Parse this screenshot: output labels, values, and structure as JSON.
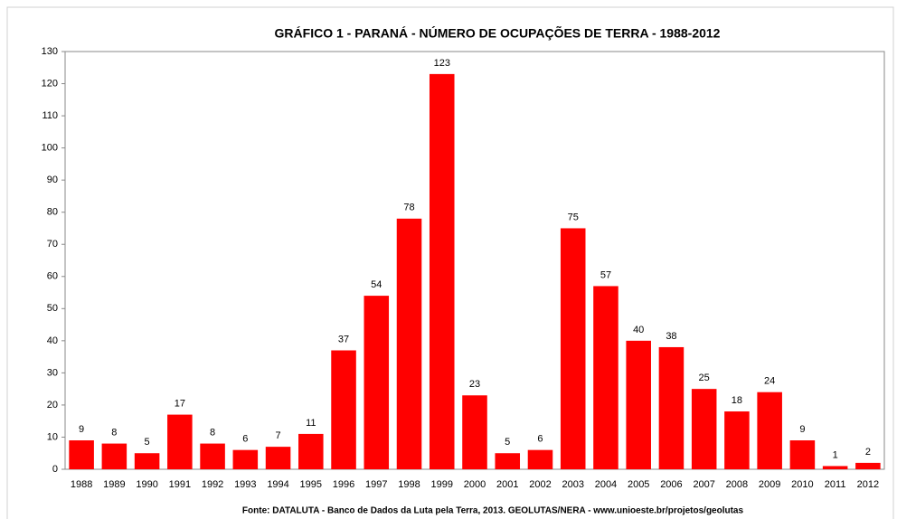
{
  "chart_data": {
    "type": "bar",
    "title": "GRÁFICO 1 - PARANÁ - NÚMERO DE OCUPAÇÕES DE TERRA - 1988-2012",
    "source": "Fonte: DATALUTA - Banco de Dados da Luta pela Terra, 2013. GEOLUTAS/NERA - www.unioeste.br/projetos/geolutas",
    "categories": [
      "1988",
      "1989",
      "1990",
      "1991",
      "1992",
      "1993",
      "1994",
      "1995",
      "1996",
      "1997",
      "1998",
      "1999",
      "2000",
      "2001",
      "2002",
      "2003",
      "2004",
      "2005",
      "2006",
      "2007",
      "2008",
      "2009",
      "2010",
      "2011",
      "2012"
    ],
    "values": [
      9,
      8,
      5,
      17,
      8,
      6,
      7,
      11,
      37,
      54,
      78,
      123,
      23,
      5,
      6,
      75,
      57,
      40,
      38,
      25,
      18,
      24,
      9,
      1,
      2
    ],
    "color": "#ff0000",
    "ylim": [
      0,
      130
    ],
    "yticks": [
      0,
      10,
      20,
      30,
      40,
      50,
      60,
      70,
      80,
      90,
      100,
      110,
      120,
      130
    ],
    "grid": false
  }
}
